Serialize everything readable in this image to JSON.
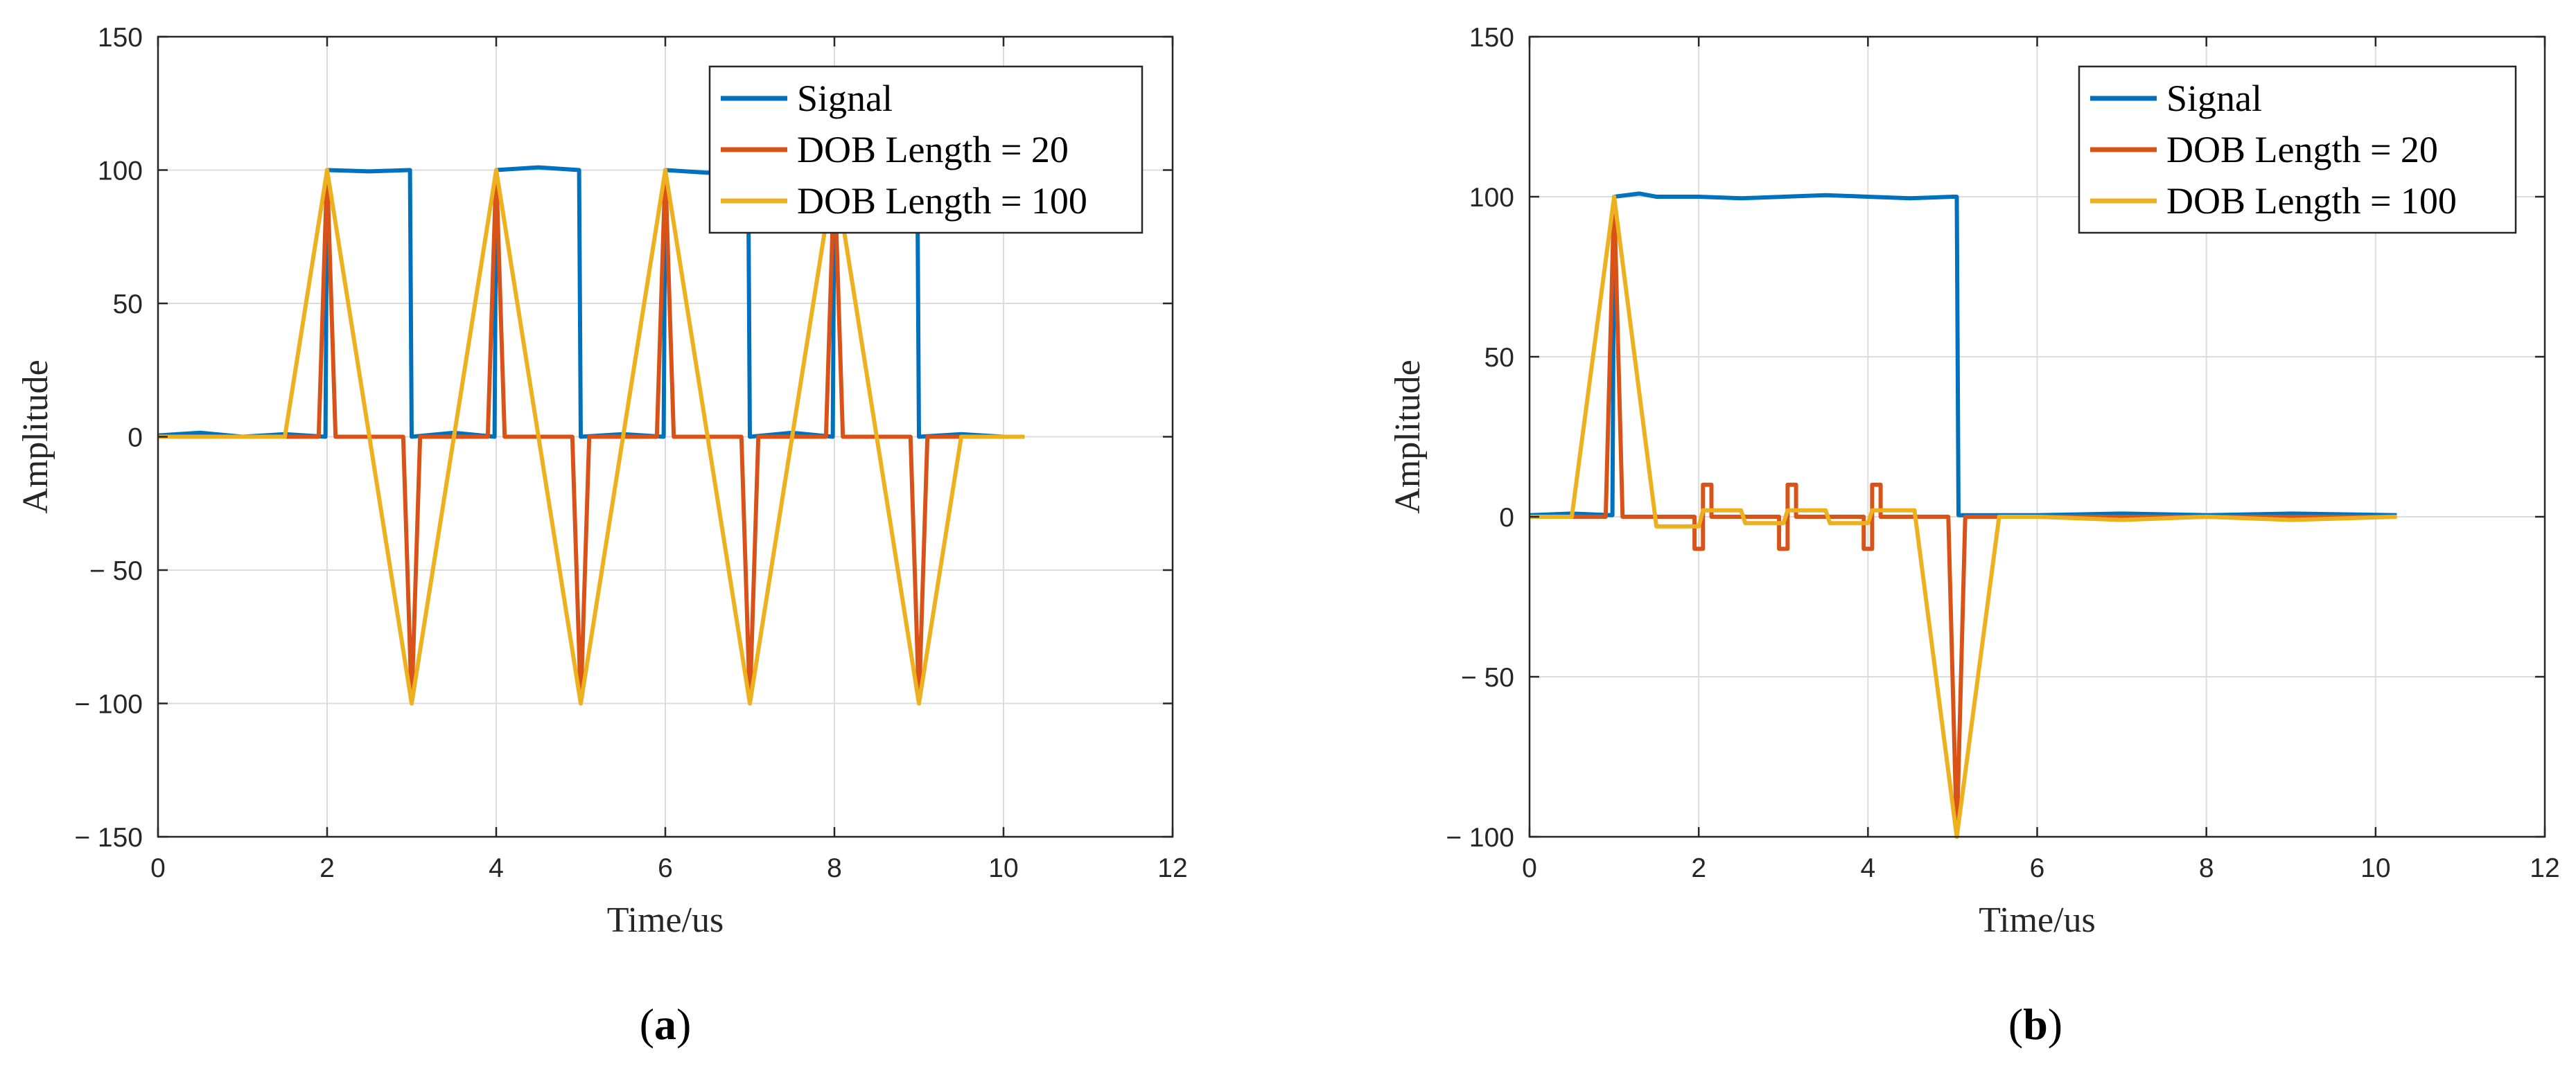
{
  "colors": {
    "Signal": "#0072BD",
    "DOB Length = 20": "#D95319",
    "DOB Length = 100": "#EDB120",
    "grid": "#DCDCDC",
    "axis": "#262626"
  },
  "chart_data": [
    {
      "type": "line",
      "panel_label": {
        "open": "(",
        "letter": "a",
        "close": ")"
      },
      "xlabel": "Time/us",
      "ylabel": "Amplitude",
      "xlim": [
        0,
        12
      ],
      "ylim": [
        -150,
        150
      ],
      "xticks": [
        0,
        2,
        4,
        6,
        8,
        10,
        12
      ],
      "yticks": [
        150,
        100,
        50,
        0,
        -50,
        -100,
        -150
      ],
      "ytick_labels": [
        "150",
        "100",
        "50",
        "0",
        "− 50",
        "− 100",
        "− 150"
      ],
      "grid": true,
      "legend": {
        "position": "top-right",
        "entries": [
          "Signal",
          "DOB Length = 20",
          "DOB Length = 100"
        ]
      },
      "series": [
        {
          "name": "Signal",
          "points": [
            [
              0,
              0.5
            ],
            [
              0.5,
              1.5
            ],
            [
              1,
              0
            ],
            [
              1.5,
              1
            ],
            [
              1.98,
              0
            ],
            [
              2.0,
              100
            ],
            [
              2.5,
              99.5
            ],
            [
              2.98,
              100
            ],
            [
              3.0,
              0
            ],
            [
              3.5,
              1.5
            ],
            [
              3.98,
              0
            ],
            [
              4.0,
              100
            ],
            [
              4.5,
              101
            ],
            [
              4.98,
              100
            ],
            [
              5.0,
              0
            ],
            [
              5.5,
              1
            ],
            [
              5.98,
              0
            ],
            [
              6.0,
              100
            ],
            [
              6.5,
              99
            ],
            [
              6.98,
              100
            ],
            [
              7.0,
              0
            ],
            [
              7.5,
              1.5
            ],
            [
              7.98,
              0
            ],
            [
              8.0,
              100
            ],
            [
              8.5,
              101
            ],
            [
              8.98,
              100
            ],
            [
              9.0,
              0
            ],
            [
              9.5,
              1
            ],
            [
              10.0,
              0
            ],
            [
              10.25,
              0
            ]
          ]
        },
        {
          "name": "DOB Length = 20",
          "points": [
            [
              0,
              0
            ],
            [
              1.9,
              0
            ],
            [
              2.0,
              100
            ],
            [
              2.1,
              0
            ],
            [
              2.9,
              0
            ],
            [
              3.0,
              -100
            ],
            [
              3.1,
              0
            ],
            [
              3.9,
              0
            ],
            [
              4.0,
              100
            ],
            [
              4.1,
              0
            ],
            [
              4.9,
              0
            ],
            [
              5.0,
              -100
            ],
            [
              5.1,
              0
            ],
            [
              5.9,
              0
            ],
            [
              6.0,
              100
            ],
            [
              6.1,
              0
            ],
            [
              6.9,
              0
            ],
            [
              7.0,
              -100
            ],
            [
              7.1,
              0
            ],
            [
              7.9,
              0
            ],
            [
              8.0,
              100
            ],
            [
              8.1,
              0
            ],
            [
              8.9,
              0
            ],
            [
              9.0,
              -100
            ],
            [
              9.1,
              0
            ],
            [
              10.25,
              0
            ]
          ]
        },
        {
          "name": "DOB Length = 100",
          "points": [
            [
              0,
              0
            ],
            [
              1.5,
              0
            ],
            [
              2.0,
              100
            ],
            [
              3.0,
              -100
            ],
            [
              4.0,
              100
            ],
            [
              5.0,
              -100
            ],
            [
              6.0,
              100
            ],
            [
              7.0,
              -100
            ],
            [
              8.0,
              100
            ],
            [
              9.0,
              -100
            ],
            [
              9.5,
              0
            ],
            [
              10.25,
              0
            ]
          ]
        }
      ]
    },
    {
      "type": "line",
      "panel_label": {
        "open": "(",
        "letter": "b",
        "close": ")"
      },
      "xlabel": "Time/us",
      "ylabel": "Amplitude",
      "xlim": [
        0,
        12
      ],
      "ylim": [
        -100,
        150
      ],
      "xticks": [
        0,
        2,
        4,
        6,
        8,
        10,
        12
      ],
      "yticks": [
        150,
        100,
        50,
        0,
        -50,
        -100
      ],
      "ytick_labels": [
        "150",
        "100",
        "50",
        "0",
        "− 50",
        "− 100"
      ],
      "grid": true,
      "legend": {
        "position": "top-right",
        "entries": [
          "Signal",
          "DOB Length = 20",
          "DOB Length = 100"
        ]
      },
      "series": [
        {
          "name": "Signal",
          "points": [
            [
              0,
              0.5
            ],
            [
              0.5,
              1
            ],
            [
              0.98,
              0.5
            ],
            [
              1.0,
              100
            ],
            [
              1.3,
              101
            ],
            [
              1.5,
              100
            ],
            [
              2.0,
              100
            ],
            [
              2.5,
              99.5
            ],
            [
              3.0,
              100
            ],
            [
              3.5,
              100.5
            ],
            [
              4.0,
              100
            ],
            [
              4.5,
              99.5
            ],
            [
              5.0,
              100
            ],
            [
              5.05,
              100
            ],
            [
              5.07,
              0.5
            ],
            [
              6,
              0.5
            ],
            [
              7,
              1
            ],
            [
              8,
              0.5
            ],
            [
              9,
              1
            ],
            [
              10.25,
              0.5
            ]
          ]
        },
        {
          "name": "DOB Length = 20",
          "points": [
            [
              0,
              0
            ],
            [
              0.9,
              0
            ],
            [
              1.0,
              100
            ],
            [
              1.1,
              0
            ],
            [
              1.95,
              0
            ],
            [
              1.95,
              -10
            ],
            [
              2.05,
              -10
            ],
            [
              2.05,
              10
            ],
            [
              2.15,
              10
            ],
            [
              2.15,
              0
            ],
            [
              2.95,
              0
            ],
            [
              2.95,
              -10
            ],
            [
              3.05,
              -10
            ],
            [
              3.05,
              10
            ],
            [
              3.15,
              10
            ],
            [
              3.15,
              0
            ],
            [
              3.95,
              0
            ],
            [
              3.95,
              -10
            ],
            [
              4.05,
              -10
            ],
            [
              4.05,
              10
            ],
            [
              4.15,
              10
            ],
            [
              4.15,
              0
            ],
            [
              4.95,
              0
            ],
            [
              5.05,
              -100
            ],
            [
              5.15,
              0
            ],
            [
              10.25,
              0
            ]
          ]
        },
        {
          "name": "DOB Length = 100",
          "points": [
            [
              0,
              0
            ],
            [
              0.5,
              0
            ],
            [
              1.0,
              100
            ],
            [
              1.5,
              -3
            ],
            [
              2.0,
              -3
            ],
            [
              2.05,
              2
            ],
            [
              2.5,
              2
            ],
            [
              2.55,
              -2
            ],
            [
              3.0,
              -2
            ],
            [
              3.05,
              2
            ],
            [
              3.5,
              2
            ],
            [
              3.55,
              -2
            ],
            [
              4.0,
              -2
            ],
            [
              4.05,
              2
            ],
            [
              4.55,
              2
            ],
            [
              5.05,
              -100
            ],
            [
              5.55,
              0
            ],
            [
              6,
              0
            ],
            [
              7,
              -1
            ],
            [
              8,
              0
            ],
            [
              9,
              -1
            ],
            [
              10.25,
              0
            ]
          ]
        }
      ]
    }
  ]
}
